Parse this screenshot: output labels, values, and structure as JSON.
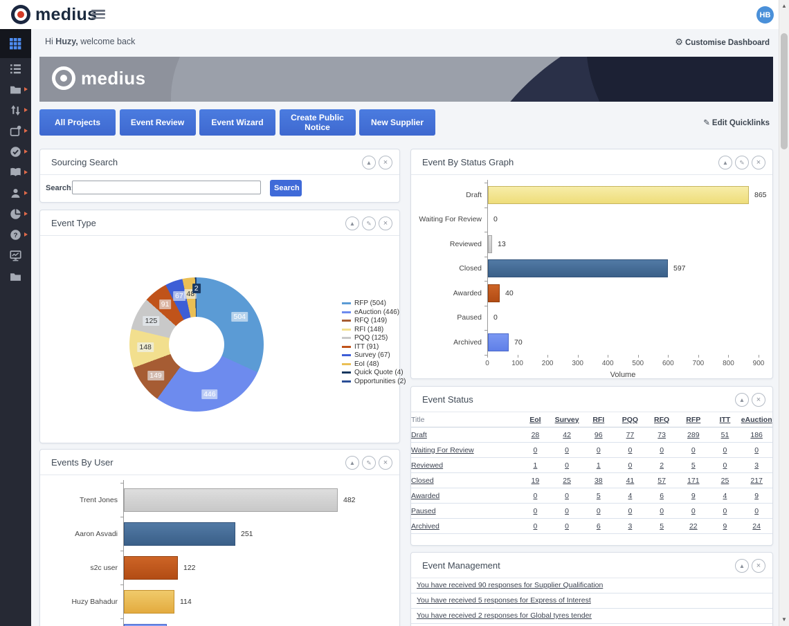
{
  "topbar": {
    "brand": "medius",
    "avatar": "HB"
  },
  "greeting": {
    "hi": "Hi",
    "name": "Huzy,",
    "rest": "welcome back",
    "customise_label": "Customise Dashboard"
  },
  "banner": {
    "brand": "medius"
  },
  "quicklinks": {
    "buttons": [
      "All Projects",
      "Event Review",
      "Event Wizard",
      "Create Public Notice",
      "New Supplier"
    ],
    "edit_label": "Edit Quicklinks"
  },
  "sidebar": {
    "items": [
      {
        "icon": "grid-icon",
        "active": true,
        "submenu": false
      },
      {
        "icon": "list-icon",
        "active": false,
        "submenu": false
      },
      {
        "icon": "folder-open-icon",
        "active": false,
        "submenu": true
      },
      {
        "icon": "up-down-arrows-icon",
        "active": false,
        "submenu": true
      },
      {
        "icon": "box-gear-icon",
        "active": false,
        "submenu": true
      },
      {
        "icon": "check-circle-icon",
        "active": false,
        "submenu": true
      },
      {
        "icon": "book-icon",
        "active": false,
        "submenu": true
      },
      {
        "icon": "person-icon",
        "active": false,
        "submenu": true
      },
      {
        "icon": "pie-icon",
        "active": false,
        "submenu": true
      },
      {
        "icon": "question-icon",
        "active": false,
        "submenu": true
      },
      {
        "icon": "monitor-chart-icon",
        "active": false,
        "submenu": false
      },
      {
        "icon": "folder-icon",
        "active": false,
        "submenu": false
      }
    ]
  },
  "panels": {
    "sourcing_search": {
      "title": "Sourcing Search",
      "search_label": "Search:",
      "search_value": "",
      "button": "Search"
    },
    "event_type": {
      "title": "Event Type",
      "chart_data": {
        "type": "pie",
        "slices": [
          {
            "label": "RFP",
            "value": 504,
            "color": "#5b9bd5",
            "text": "#ffffff"
          },
          {
            "label": "eAuction",
            "value": 446,
            "color": "#6d8bee",
            "text": "#ffffff"
          },
          {
            "label": "RFQ",
            "value": 149,
            "color": "#a65c33",
            "text": "#ffffff"
          },
          {
            "label": "RFI",
            "value": 148,
            "color": "#f2df8e",
            "text": "#333333"
          },
          {
            "label": "PQQ",
            "value": 125,
            "color": "#c9c9c9",
            "text": "#333333"
          },
          {
            "label": "ITT",
            "value": 91,
            "color": "#c0531a",
            "text": "#ffffff"
          },
          {
            "label": "Survey",
            "value": 67,
            "color": "#3d5ed6",
            "text": "#ffffff"
          },
          {
            "label": "EoI",
            "value": 48,
            "color": "#eabf55",
            "text": "#333333"
          },
          {
            "label": "Quick Quote",
            "value": 4,
            "color": "#17375e",
            "text": "#ffffff",
            "hide_label": true
          },
          {
            "label": "Opportunities",
            "value": 2,
            "color": "#2b4f96",
            "text": "#ffffff",
            "dark_label": true
          }
        ],
        "legend_position": "right"
      }
    },
    "event_status_graph": {
      "title": "Event By Status Graph",
      "chart_data": {
        "type": "bar",
        "orientation": "horizontal",
        "categories": [
          "Draft",
          "Waiting For Review",
          "Reviewed",
          "Closed",
          "Awarded",
          "Paused",
          "Archived"
        ],
        "values": [
          865,
          0,
          13,
          597,
          40,
          0,
          70
        ],
        "bar_colors": [
          [
            "#f7eda8",
            "#eedd7a",
            "#c6b55f"
          ],
          [
            "#ffffff",
            "#ffffff",
            "#ffffff"
          ],
          [
            "#dedede",
            "#c8c8c8",
            "#a5a5a5"
          ],
          [
            "#527aa5",
            "#3a5f88",
            "#32537a"
          ],
          [
            "#cd6426",
            "#b24c14",
            "#93400f"
          ],
          [
            "#ffffff",
            "#ffffff",
            "#ffffff"
          ],
          [
            "#7b98f2",
            "#5f7fe8",
            "#4a68c8"
          ]
        ],
        "xlabel": "Volume",
        "xlim": [
          0,
          900
        ],
        "xticks": [
          0,
          100,
          200,
          300,
          400,
          500,
          600,
          700,
          800,
          900
        ]
      }
    },
    "event_status": {
      "title": "Event Status",
      "columns": [
        "Title",
        "EoI",
        "Survey",
        "RFI",
        "PQQ",
        "RFQ",
        "RFP",
        "ITT",
        "eAuction"
      ],
      "rows": [
        {
          "title": "Draft",
          "values": [
            28,
            42,
            96,
            77,
            73,
            289,
            51,
            186
          ]
        },
        {
          "title": "Waiting For Review",
          "values": [
            0,
            0,
            0,
            0,
            0,
            0,
            0,
            0
          ]
        },
        {
          "title": "Reviewed",
          "values": [
            1,
            0,
            1,
            0,
            2,
            5,
            0,
            3
          ]
        },
        {
          "title": "Closed",
          "values": [
            19,
            25,
            38,
            41,
            57,
            171,
            25,
            217
          ]
        },
        {
          "title": "Awarded",
          "values": [
            0,
            0,
            5,
            4,
            6,
            9,
            4,
            9
          ]
        },
        {
          "title": "Paused",
          "values": [
            0,
            0,
            0,
            0,
            0,
            0,
            0,
            0
          ]
        },
        {
          "title": "Archived",
          "values": [
            0,
            0,
            6,
            3,
            5,
            22,
            9,
            24
          ]
        }
      ]
    },
    "events_by_user": {
      "title": "Events By User",
      "chart_data": {
        "type": "bar",
        "orientation": "horizontal",
        "categories": [
          "Trent Jones",
          "Aaron Asvadi",
          "s2c user",
          "Huzy Bahadur",
          ""
        ],
        "values": [
          482,
          251,
          122,
          114,
          97
        ],
        "value_label_shown": [
          true,
          true,
          true,
          true,
          false
        ],
        "bar_colors": [
          [
            "#dedede",
            "#c8c8c8",
            "#a5a5a5"
          ],
          [
            "#527aa5",
            "#3a5f88",
            "#32537a"
          ],
          [
            "#cd6426",
            "#b24c14",
            "#93400f"
          ],
          [
            "#f0ca6b",
            "#e3ab3f",
            "#c5912c"
          ],
          [
            "#7b98f2",
            "#5f7fe8",
            "#4a68c8"
          ]
        ],
        "xlim": [
          0,
          540
        ]
      }
    },
    "event_management": {
      "title": "Event Management",
      "links": [
        "You have received 90 responses for Supplier Qualification",
        "You have received 5 responses for Express of Interest",
        "You have received 2 responses for Global tyres tender"
      ]
    }
  },
  "panel_controls": {
    "collapse": "collapse",
    "edit": "edit",
    "close": "close"
  },
  "colors": {
    "accent_blue": "#3f6ad8",
    "sidebar_bg": "#262934",
    "brand_navy": "#1b2740",
    "brand_red": "#d33b27"
  }
}
